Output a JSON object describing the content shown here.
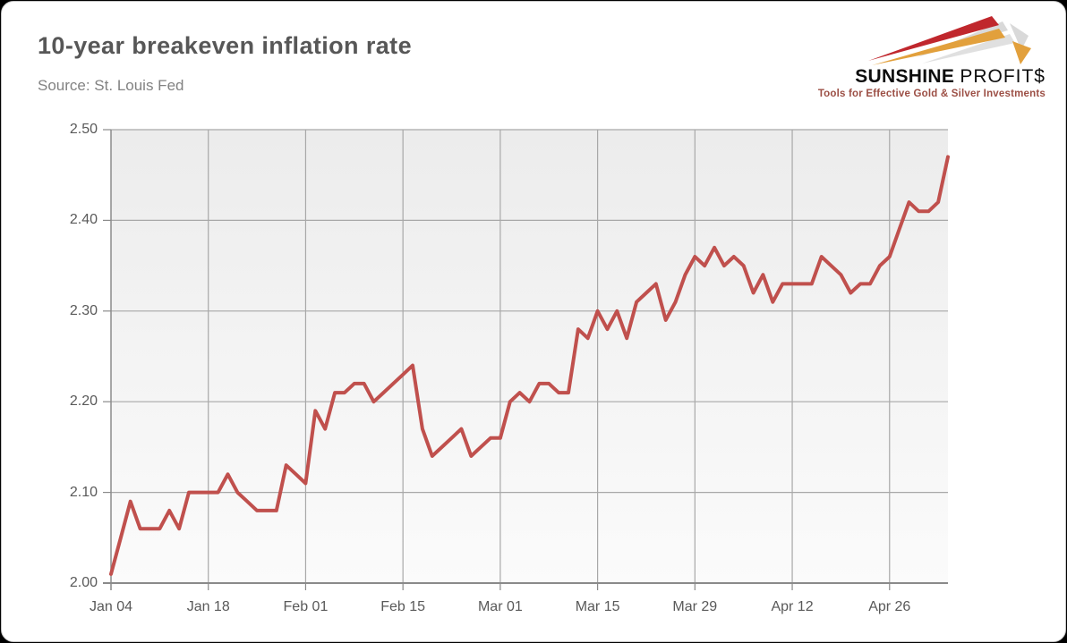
{
  "page": {
    "title": "10-year breakeven inflation rate",
    "source": "Source: St. Louis Fed"
  },
  "logo": {
    "brand_bold": "SUNSHINE",
    "brand_light": "PROFIT$",
    "tagline": "Tools for Effective Gold & Silver Investments"
  },
  "colors": {
    "line": "#c0504d",
    "grid": "#a8a8a8",
    "axis": "#8a8a8a",
    "text": "#595959",
    "muted": "#828282",
    "plot_bg_top": "#ececec",
    "plot_bg_bottom": "#fbfbfb",
    "logo_red": "#c0272d",
    "logo_gold": "#e2a03c",
    "logo_gray": "#d9d9d9",
    "tagline_red": "#9c4f45"
  },
  "chart_data": {
    "type": "line",
    "title": "10-year breakeven inflation rate",
    "source": "Source: St. Louis Fed",
    "xlabel": "",
    "ylabel": "",
    "ylim": [
      2.0,
      2.5
    ],
    "grid": true,
    "legend": "none",
    "x_frequency": "daily (business days)",
    "x_tick_labels": [
      "Jan 04",
      "Jan 18",
      "Feb 01",
      "Feb 15",
      "Mar 01",
      "Mar 15",
      "Mar 29",
      "Apr 12",
      "Apr 26"
    ],
    "x_tick_indices": [
      0,
      10,
      20,
      30,
      40,
      50,
      60,
      70,
      80
    ],
    "y_ticks": [
      2.0,
      2.1,
      2.2,
      2.3,
      2.4,
      2.5
    ],
    "y_tick_labels": [
      "2.00",
      "2.10",
      "2.20",
      "2.30",
      "2.40",
      "2.50"
    ],
    "series": [
      {
        "name": "10-year breakeven inflation rate",
        "color": "#c0504d",
        "values": [
          2.01,
          2.05,
          2.09,
          2.06,
          2.06,
          2.06,
          2.08,
          2.06,
          2.1,
          2.1,
          2.1,
          2.1,
          2.12,
          2.1,
          2.09,
          2.08,
          2.08,
          2.08,
          2.13,
          2.12,
          2.11,
          2.19,
          2.17,
          2.21,
          2.21,
          2.22,
          2.22,
          2.2,
          2.21,
          2.22,
          2.23,
          2.24,
          2.17,
          2.14,
          2.15,
          2.16,
          2.17,
          2.14,
          2.15,
          2.16,
          2.16,
          2.2,
          2.21,
          2.2,
          2.22,
          2.22,
          2.21,
          2.21,
          2.28,
          2.27,
          2.3,
          2.28,
          2.3,
          2.27,
          2.31,
          2.32,
          2.33,
          2.29,
          2.31,
          2.34,
          2.36,
          2.35,
          2.37,
          2.35,
          2.36,
          2.35,
          2.32,
          2.34,
          2.31,
          2.33,
          2.33,
          2.33,
          2.33,
          2.36,
          2.35,
          2.34,
          2.32,
          2.33,
          2.33,
          2.35,
          2.36,
          2.39,
          2.42,
          2.41,
          2.41,
          2.42,
          2.47
        ]
      }
    ]
  }
}
